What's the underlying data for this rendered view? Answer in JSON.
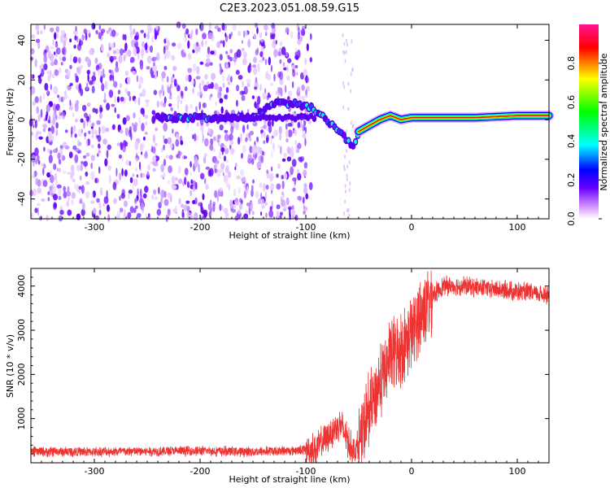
{
  "chart_data": [
    {
      "type": "heatmap",
      "title": "C2E3.2023.051.08.59.G15",
      "xlabel": "Height of straight line (km)",
      "ylabel": "Frequency (Hz)",
      "xlim": [
        -360,
        130
      ],
      "ylim": [
        -50,
        48
      ],
      "xticks": [
        -300,
        -200,
        -100,
        0,
        100
      ],
      "yticks": [
        -40,
        -20,
        0,
        20,
        40
      ],
      "colorbar": {
        "label": "Normalized spectral amplitude",
        "range": [
          0.0,
          1.0
        ],
        "ticks": [
          0.0,
          0.2,
          0.4,
          0.6,
          0.8
        ],
        "colors": [
          "#ffffff",
          "#cc88ff",
          "#6600ff",
          "#0000ff",
          "#00ffff",
          "#00ff00",
          "#ffff00",
          "#ff0000",
          "#ff1493"
        ]
      },
      "features": [
        {
          "name": "noise region",
          "x_range": [
            -360,
            -95
          ],
          "freq_range": [
            -50,
            48
          ]
        },
        {
          "name": "carrier track",
          "points": [
            [
              -240,
              1
            ],
            [
              -200,
              1
            ],
            [
              -150,
              1
            ],
            [
              -130,
              8
            ],
            [
              -110,
              8
            ],
            [
              -95,
              6
            ],
            [
              -85,
              2
            ],
            [
              -75,
              -3
            ],
            [
              -65,
              -8
            ],
            [
              -55,
              -14
            ],
            [
              -50,
              -6
            ],
            [
              -40,
              -3
            ],
            [
              -30,
              0
            ],
            [
              -20,
              2
            ],
            [
              -10,
              0
            ],
            [
              0,
              1
            ],
            [
              20,
              1
            ],
            [
              60,
              1
            ],
            [
              100,
              2
            ],
            [
              130,
              2
            ]
          ]
        }
      ]
    },
    {
      "type": "line",
      "xlabel": "Height of straight line (km)",
      "ylabel": "SNR (10 * v/v)",
      "xlim": [
        -360,
        130
      ],
      "ylim": [
        0,
        4400
      ],
      "xticks": [
        -300,
        -200,
        -100,
        0,
        100
      ],
      "yticks": [
        1000,
        2000,
        3000,
        4000
      ],
      "color": "#ee3333",
      "series": [
        {
          "name": "SNR",
          "x": [
            -360,
            -300,
            -200,
            -150,
            -110,
            -90,
            -75,
            -68,
            -60,
            -55,
            -48,
            -40,
            -30,
            -20,
            -10,
            0,
            10,
            20,
            30,
            50,
            70,
            90,
            110,
            130
          ],
          "y": [
            250,
            250,
            270,
            250,
            280,
            320,
            700,
            900,
            500,
            250,
            500,
            1200,
            1800,
            2400,
            2600,
            2900,
            3400,
            3800,
            4000,
            4000,
            3950,
            3900,
            3850,
            3800
          ]
        }
      ]
    }
  ]
}
